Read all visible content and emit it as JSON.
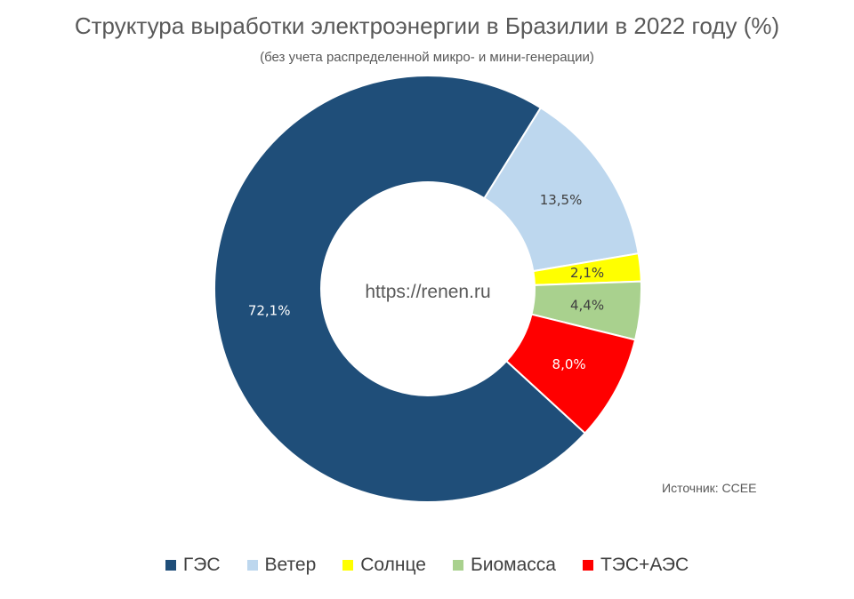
{
  "chart_data": {
    "type": "pie",
    "variant": "donut",
    "title": "Структура выработки электроэнергии в Бразилии в 2022 году (%)",
    "subtitle": "(без учета распределенной микро- и мини-генерации)",
    "center_text": "https://renen.ru",
    "source": "Источник: CCEE",
    "categories": [
      "ГЭС",
      "Ветер",
      "Солнце",
      "Биомасса",
      "ТЭС+АЭС"
    ],
    "values": [
      72.1,
      13.5,
      2.1,
      4.4,
      8.0
    ],
    "data_labels": [
      "72,1%",
      "13,5%",
      "2,1%",
      "4,4%",
      "8,0%"
    ],
    "colors": [
      "#1F4E79",
      "#BDD7EE",
      "#FFFF00",
      "#A9D18E",
      "#FF0000"
    ],
    "label_colors": [
      "#FFFFFF",
      "#404040",
      "#404040",
      "#404040",
      "#FFFFFF"
    ],
    "legend_position": "bottom"
  }
}
